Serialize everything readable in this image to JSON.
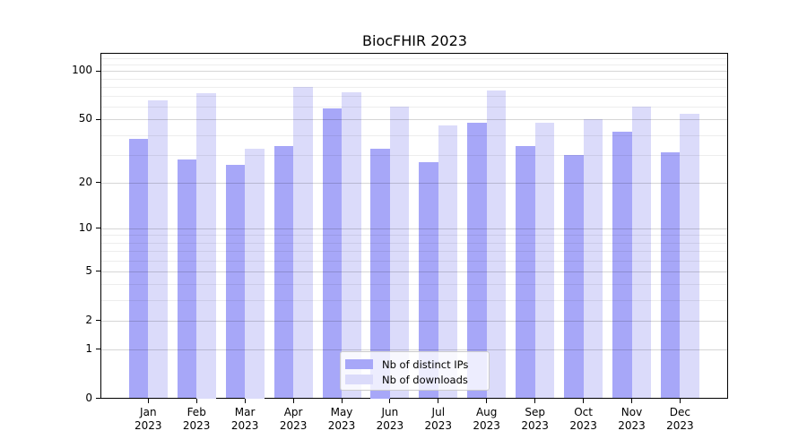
{
  "title": "BiocFHIR 2023",
  "chart_data": {
    "type": "bar",
    "title": "BiocFHIR 2023",
    "categories": [
      "Jan",
      "Feb",
      "Mar",
      "Apr",
      "May",
      "Jun",
      "Jul",
      "Aug",
      "Sep",
      "Oct",
      "Nov",
      "Dec"
    ],
    "year_label": "2023",
    "series": [
      {
        "name": "Nb of distinct IPs",
        "color": "#a7a7f8",
        "values": [
          38,
          28,
          26,
          34,
          59,
          33,
          27,
          48,
          34,
          30,
          42,
          31
        ]
      },
      {
        "name": "Nb of downloads",
        "color": "#dbdbfa",
        "values": [
          66,
          73,
          33,
          80,
          74,
          60,
          46,
          76,
          48,
          50,
          60,
          54
        ]
      }
    ],
    "xlabel": "",
    "ylabel": "",
    "yscale": "log1p",
    "ylim": [
      0,
      128
    ],
    "y_ticks": [
      100,
      50,
      20,
      10,
      5,
      2,
      1,
      0
    ],
    "y_minor_ticks": [
      3,
      4,
      6,
      7,
      8,
      9,
      30,
      40,
      60,
      70,
      80,
      90,
      110,
      120
    ],
    "grid": true,
    "legend_position": "inside-bottom-center"
  },
  "colors": {
    "bar_distinct_ips": "#a7a7f8",
    "bar_downloads": "#dbdbfa",
    "grid_major": "#d6d6d6",
    "grid_minor": "#ededed",
    "axis": "#000000",
    "background": "#ffffff",
    "legend_border": "#cccccc"
  }
}
